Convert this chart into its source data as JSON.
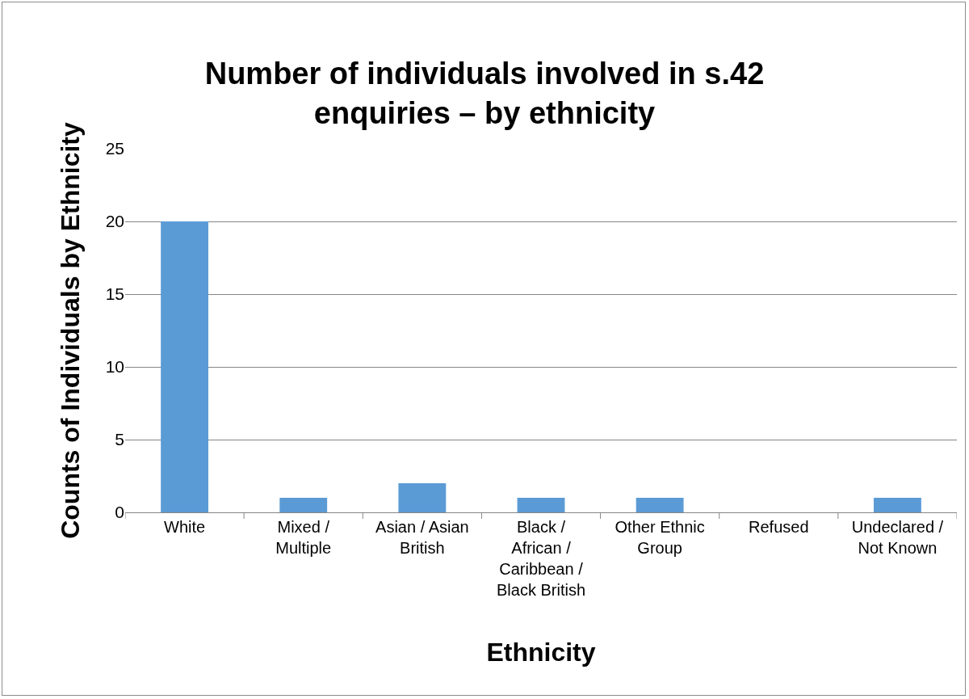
{
  "chart_data": {
    "type": "bar",
    "title": "Number of individuals involved in s.42 enquiries – by ethnicity",
    "xlabel": "Ethnicity",
    "ylabel": "Counts of Individuals by Ethnicity",
    "categories": [
      "White",
      "Mixed / Multiple",
      "Asian / Asian British",
      "Black / African / Caribbean / Black British",
      "Other Ethnic Group",
      "Refused",
      "Undeclared / Not Known"
    ],
    "values": [
      20,
      1,
      2,
      1,
      1,
      0,
      1
    ],
    "color": "#5b9bd5",
    "ylim": [
      0,
      25
    ],
    "yticks": [
      0,
      5,
      10,
      15,
      20,
      25
    ],
    "grid": "y"
  }
}
